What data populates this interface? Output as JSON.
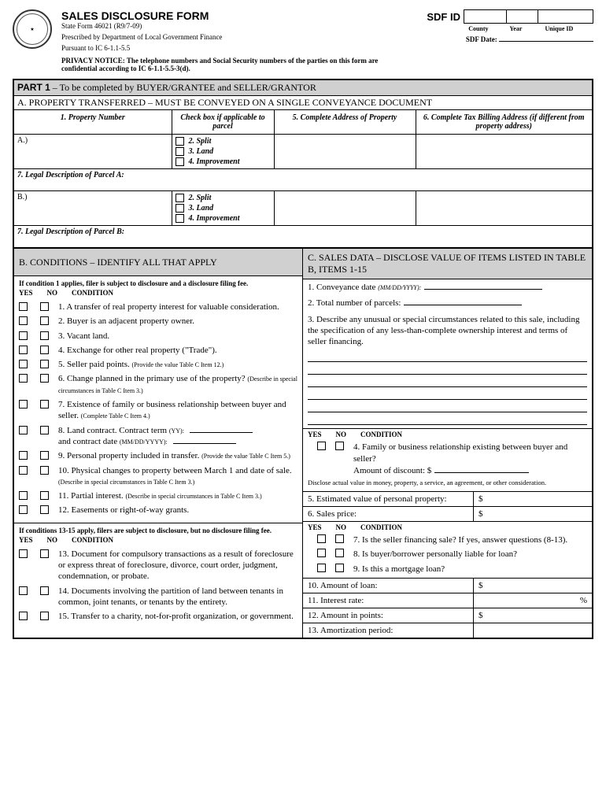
{
  "header": {
    "title": "SALES DISCLOSURE FORM",
    "form_no": "State Form 46021 (R9/7-09)",
    "prescribed1": "Prescribed by Department of Local Government Finance",
    "prescribed2": "Pursuant to IC 6-1.1-5.5",
    "privacy": "PRIVACY NOTICE: The telephone numbers and Social Security numbers of the parties on this form are confidential according to IC 6-1.1-5.5-3(d).",
    "sdf_id": "SDF ID",
    "box_labels": [
      "County",
      "Year",
      "Unique ID"
    ],
    "sdf_date": "SDF Date:"
  },
  "part1": {
    "title_bold": "PART 1",
    "title_rest": " – To be completed by BUYER/GRANTEE and SELLER/GRANTOR",
    "section_a": "A. PROPERTY TRANSFERRED – MUST BE CONVEYED ON A SINGLE CONVEYANCE DOCUMENT",
    "cols": [
      "1. Property Number",
      "Check box if applicable to parcel",
      "5. Complete Address of Property",
      "6. Complete Tax Billing Address (if different from property address)"
    ],
    "rows": [
      "A.)",
      "B.)"
    ],
    "checks": [
      "2. Split",
      "3. Land",
      "4. Improvement"
    ],
    "legal_a": "7. Legal Description of Parcel A:",
    "legal_b": "7. Legal Description of Parcel B:"
  },
  "section_b": {
    "title": "B. CONDITIONS – IDENTIFY ALL THAT APPLY",
    "intro1": "If condition 1 applies, filer is subject to disclosure and a disclosure filing fee.",
    "intro2": "If conditions 13-15 apply, filers are subject to disclosure, but no disclosure filing fee.",
    "yn": [
      "YES",
      "NO",
      "CONDITION"
    ],
    "items1": [
      {
        "t": "1. A transfer of real property interest for valuable consideration."
      },
      {
        "t": "2. Buyer is an adjacent property owner."
      },
      {
        "t": "3. Vacant land."
      },
      {
        "t": "4. Exchange for other real property (\"Trade\")."
      },
      {
        "t": "5. Seller paid points.",
        "s": "(Provide the value Table C Item 12.)"
      },
      {
        "t": "6. Change planned in the primary use of the property?",
        "s": "(Describe in special circumstances in Table C Item 3.)"
      },
      {
        "t": "7. Existence of family or business relationship between buyer and seller.",
        "s": "(Complete Table C Item 4.)"
      },
      {
        "t": "8. Land contract.  Contract term",
        "s": "(YY):",
        "extra": "and contract date",
        "extra_s": "(MM/DD/YYYY):"
      },
      {
        "t": "9. Personal property included in transfer.",
        "s": "(Provide the value Table C Item 5.)"
      },
      {
        "t": "10. Physical changes to property between March 1 and date of sale.",
        "s": "(Describe in special circumstances in Table C Item 3.)"
      },
      {
        "t": "11. Partial interest.",
        "s": "(Describe in special circumstances in Table C Item 3.)"
      },
      {
        "t": "12. Easements or right-of-way grants."
      }
    ],
    "items2": [
      {
        "t": "13. Document for compulsory transactions as a result of foreclosure or express threat of foreclosure, divorce, court order, judgment, condemnation, or probate."
      },
      {
        "t": "14. Documents involving the partition of land between tenants in common, joint tenants, or tenants by the entirety."
      },
      {
        "t": "15. Transfer to a charity, not-for-profit organization, or government."
      }
    ]
  },
  "section_c": {
    "title": "C. SALES DATA – DISCLOSE VALUE OF ITEMS LISTED IN TABLE B, ITEMS 1-15",
    "item1": "1. Conveyance date",
    "item1_s": "(MM/DD/YYYY):",
    "item2": "2. Total number of parcels:",
    "item3": "3. Describe any unusual or special circumstances related to this sale, including the specification of any less-than-complete ownership interest and terms of seller financing.",
    "yn": [
      "YES",
      "NO",
      "CONDITION"
    ],
    "cond4": "4. Family or business relationship existing between buyer and seller?",
    "amount": "Amount of discount:  $",
    "disclose": "Disclose actual value in money, property, a service, an agreement, or other consideration.",
    "kv5": "5. Estimated value of personal property:",
    "kv6": "6. Sales price:",
    "cond7": "7. Is the seller financing sale?  If yes, answer questions (8-13).",
    "cond8": "8. Is buyer/borrower personally liable for loan?",
    "cond9": "9. Is this a mortgage loan?",
    "kv10": "10. Amount of loan:",
    "kv11": "11. Interest rate:",
    "kv11_suffix": "%",
    "kv12": "12. Amount in points:",
    "kv13": "13. Amortization period:",
    "dollar": "$"
  }
}
